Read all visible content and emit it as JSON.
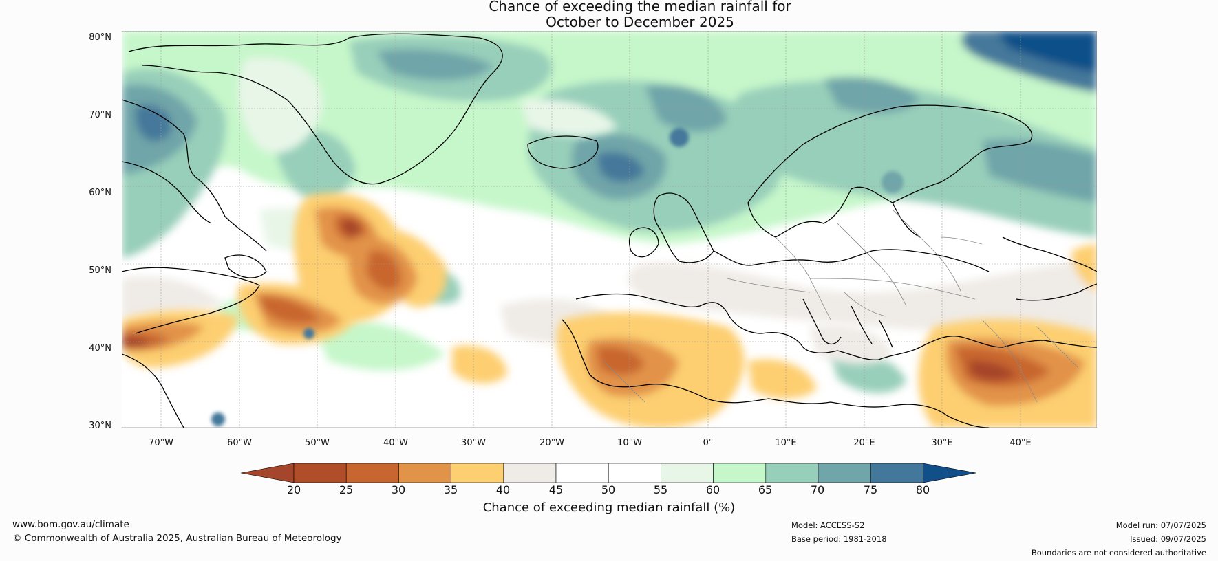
{
  "title": {
    "line1": "Chance of exceeding the median rainfall for",
    "line2": "October to December 2025"
  },
  "map": {
    "lat_labels": [
      "80°N",
      "70°N",
      "60°N",
      "50°N",
      "40°N",
      "30°N"
    ],
    "lon_labels": [
      "70°W",
      "60°W",
      "50°W",
      "40°W",
      "30°W",
      "20°W",
      "10°W",
      "0°",
      "10°E",
      "20°E",
      "30°E",
      "40°E"
    ],
    "colors": {
      "ocean_base": "#ffffff",
      "coast": "#000000",
      "borders": "#888888",
      "grid": "#999999"
    }
  },
  "colorbar": {
    "label": "Chance of exceeding median rainfall (%)",
    "ticks": [
      "20",
      "25",
      "30",
      "35",
      "40",
      "45",
      "50",
      "55",
      "60",
      "65",
      "70",
      "75",
      "80"
    ],
    "colors": [
      "#a5452b",
      "#b04e2a",
      "#c8662f",
      "#e2934a",
      "#fdcf71",
      "#efebe6",
      "#ffffff",
      "#ffffff",
      "#e8f6e8",
      "#c6f7ca",
      "#98cfba",
      "#70a5a9",
      "#44789a",
      "#114f88"
    ]
  },
  "footer": {
    "url": "www.bom.gov.au/climate",
    "copyright": "© Commonwealth of Australia 2025, Australian Bureau of Meteorology",
    "model": "Model: ACCESS-S2",
    "base_period": "Base period: 1981-2018",
    "model_run": "Model run: 07/07/2025",
    "issued": "Issued: 09/07/2025",
    "disclaimer": "Boundaries are not considered authoritative"
  }
}
